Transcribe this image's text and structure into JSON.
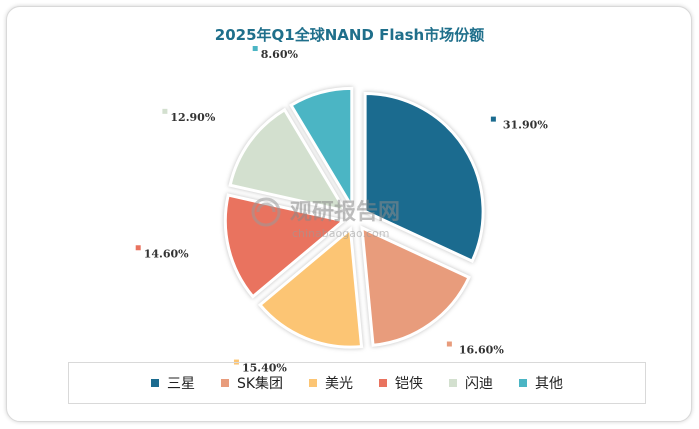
{
  "chart_data": {
    "type": "pie",
    "title": "2025年Q1全球NAND Flash市场份额",
    "categories": [
      "三星",
      "SK集团",
      "美光",
      "铠侠",
      "闪迪",
      "其他"
    ],
    "values": [
      31.9,
      16.6,
      15.4,
      14.6,
      12.9,
      8.6
    ],
    "labels": [
      "31.90%",
      "16.60%",
      "15.40%",
      "14.60%",
      "12.90%",
      "8.60%"
    ],
    "colors": [
      "#1b6b8f",
      "#e89c7c",
      "#fcc574",
      "#e9735f",
      "#d3e0cf",
      "#4bb5c4"
    ],
    "legend_position": "bottom"
  },
  "watermark": {
    "text": "观研报告网",
    "url": "chinabaogao.com"
  }
}
